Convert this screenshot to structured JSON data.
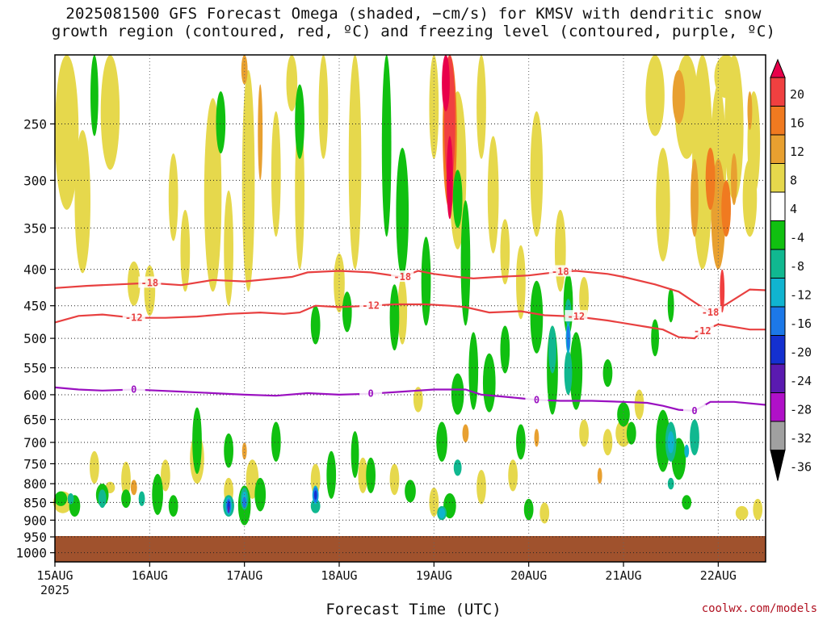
{
  "title_line1": "2025081500 GFS Forecast Omega (shaded, −cm/s) for KMSV with dendritic snow",
  "title_line2": "growth region (contoured, red, ºC) and freezing level (contoured, purple, ºC)",
  "credit": "coolwx.com/models",
  "chart_data": {
    "type": "heatmap",
    "xlabel": "Forecast Time (UTC)",
    "ylabel": "",
    "x_ticks": [
      "15AUG",
      "16AUG",
      "17AUG",
      "18AUG",
      "19AUG",
      "20AUG",
      "21AUG",
      "22AUG"
    ],
    "x_tick_year": "2025",
    "x_range_hours": [
      0,
      180
    ],
    "y_ticks": [
      250,
      300,
      350,
      400,
      450,
      500,
      550,
      600,
      650,
      700,
      750,
      800,
      850,
      900,
      950,
      1000
    ],
    "y_range_hpa": [
      200,
      1030
    ],
    "colorbar": {
      "levels": [
        20,
        16,
        12,
        8,
        4,
        -4,
        -8,
        -12,
        -16,
        -20,
        -24,
        -28,
        -32,
        -36
      ],
      "colors": [
        "#e8004a",
        "#f04040",
        "#f07a20",
        "#e8a030",
        "#e6d84c",
        "#ffffff",
        "#10c010",
        "#10b890",
        "#10b4d0",
        "#1c78e8",
        "#1430d0",
        "#5a1ab0",
        "#b010c8",
        "#a0a0a0",
        "#000000"
      ]
    },
    "contours": [
      {
        "label": "-18",
        "color": "#e84040",
        "points": [
          [
            0,
            425
          ],
          [
            8,
            422
          ],
          [
            16,
            420
          ],
          [
            24,
            418
          ],
          [
            32,
            421
          ],
          [
            40,
            414
          ],
          [
            48,
            416
          ],
          [
            56,
            412
          ],
          [
            60,
            410
          ],
          [
            64,
            404
          ],
          [
            72,
            402
          ],
          [
            80,
            404
          ],
          [
            88,
            410
          ],
          [
            92,
            402
          ],
          [
            96,
            406
          ],
          [
            102,
            410
          ],
          [
            106,
            412
          ],
          [
            112,
            410
          ],
          [
            120,
            408
          ],
          [
            128,
            403
          ],
          [
            132,
            402
          ],
          [
            140,
            406
          ],
          [
            144,
            410
          ],
          [
            152,
            420
          ],
          [
            158,
            430
          ],
          [
            162,
            445
          ],
          [
            166,
            460
          ],
          [
            170,
            448
          ],
          [
            176,
            427
          ],
          [
            180,
            428
          ]
        ]
      },
      {
        "label": "-12",
        "color": "#e84040",
        "points": [
          [
            0,
            475
          ],
          [
            6,
            465
          ],
          [
            12,
            463
          ],
          [
            20,
            468
          ],
          [
            28,
            468
          ],
          [
            36,
            466
          ],
          [
            44,
            462
          ],
          [
            52,
            460
          ],
          [
            58,
            462
          ],
          [
            62,
            460
          ],
          [
            66,
            450
          ],
          [
            72,
            452
          ],
          [
            80,
            450
          ],
          [
            86,
            448
          ],
          [
            94,
            448
          ],
          [
            100,
            450
          ],
          [
            104,
            452
          ],
          [
            110,
            460
          ],
          [
            118,
            458
          ],
          [
            124,
            464
          ],
          [
            132,
            466
          ],
          [
            140,
            472
          ],
          [
            146,
            478
          ],
          [
            150,
            482
          ],
          [
            154,
            486
          ],
          [
            158,
            498
          ],
          [
            162,
            500
          ],
          [
            164,
            488
          ],
          [
            168,
            478
          ],
          [
            176,
            486
          ],
          [
            180,
            486
          ]
        ]
      },
      {
        "label": "0",
        "color": "#9a10c0",
        "points": [
          [
            0,
            586
          ],
          [
            6,
            590
          ],
          [
            12,
            592
          ],
          [
            20,
            590
          ],
          [
            26,
            592
          ],
          [
            32,
            594
          ],
          [
            40,
            597
          ],
          [
            48,
            600
          ],
          [
            56,
            602
          ],
          [
            64,
            597
          ],
          [
            72,
            600
          ],
          [
            80,
            598
          ],
          [
            88,
            594
          ],
          [
            96,
            590
          ],
          [
            104,
            590
          ],
          [
            108,
            600
          ],
          [
            114,
            604
          ],
          [
            118,
            607
          ],
          [
            122,
            610
          ],
          [
            128,
            612
          ],
          [
            136,
            612
          ],
          [
            144,
            614
          ],
          [
            150,
            616
          ],
          [
            154,
            622
          ],
          [
            158,
            630
          ],
          [
            162,
            632
          ],
          [
            166,
            614
          ],
          [
            172,
            614
          ],
          [
            180,
            620
          ]
        ]
      }
    ]
  }
}
